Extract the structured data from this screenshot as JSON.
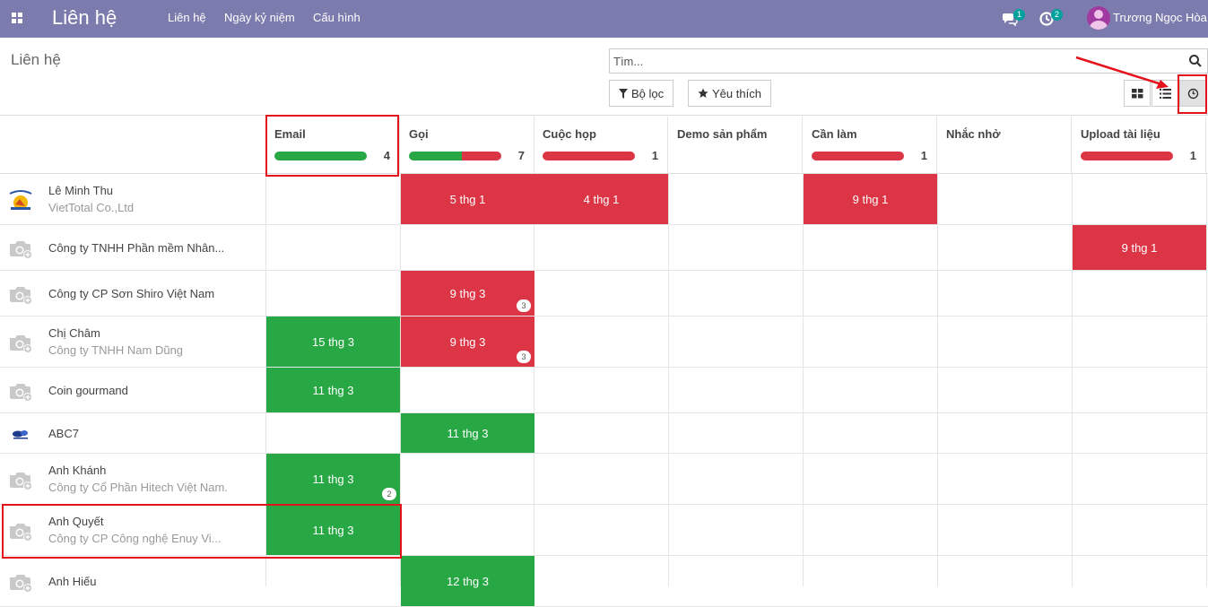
{
  "navbar": {
    "brand": "Liên hệ",
    "menu": [
      "Liên hệ",
      "Ngày kỷ niệm",
      "Cấu hình"
    ],
    "messages_count": "1",
    "activities_count": "2",
    "user_name": "Trương Ngọc Hòa",
    "color": "#7c7bad"
  },
  "control": {
    "title": "Liên hệ",
    "search_placeholder": "Tìm...",
    "filter_label": "Bộ lọc",
    "favorite_label": "Yêu thích",
    "views": [
      "kanban",
      "list",
      "activity"
    ],
    "active_view": "activity"
  },
  "columns": [
    {
      "title": "Email",
      "count": "4",
      "green": 1.0,
      "red": 0
    },
    {
      "title": "Gọi",
      "count": "7",
      "green": 0.57,
      "red": 0.43
    },
    {
      "title": "Cuộc họp",
      "count": "1",
      "green": 0,
      "red": 1.0
    },
    {
      "title": "Demo sản phẩm",
      "count": "",
      "green": 0,
      "red": 0
    },
    {
      "title": "Cần làm",
      "count": "1",
      "green": 0,
      "red": 1.0
    },
    {
      "title": "Nhắc nhở",
      "count": "",
      "green": 0,
      "red": 0
    },
    {
      "title": "Upload tài liệu",
      "count": "1",
      "green": 0,
      "red": 1.0
    }
  ],
  "rows": [
    {
      "name": "Lê Minh Thu",
      "company": "VietTotal Co.,Ltd",
      "avatar": "logo-viettotal",
      "cells": [
        {
          "col": 1,
          "text": "5 thg 1",
          "color": "red"
        },
        {
          "col": 2,
          "text": "4 thg 1",
          "color": "red"
        },
        {
          "col": 4,
          "text": "9 thg 1",
          "color": "red"
        }
      ]
    },
    {
      "name": "Công ty TNHH Phần mềm Nhân...",
      "company": "",
      "avatar": "camera",
      "cells": [
        {
          "col": 6,
          "text": "9 thg 1",
          "color": "red"
        }
      ]
    },
    {
      "name": "Công ty CP Sơn Shiro Việt Nam",
      "company": "",
      "avatar": "camera",
      "cells": [
        {
          "col": 1,
          "text": "9 thg 3",
          "color": "red",
          "badge": "3"
        }
      ]
    },
    {
      "name": "Chị Châm",
      "company": "Công ty TNHH Nam Dũng",
      "avatar": "camera",
      "cells": [
        {
          "col": 0,
          "text": "15 thg 3",
          "color": "green"
        },
        {
          "col": 1,
          "text": "9 thg 3",
          "color": "red",
          "badge": "3"
        }
      ]
    },
    {
      "name": "Coin gourmand",
      "company": "",
      "avatar": "camera",
      "cells": [
        {
          "col": 0,
          "text": "11 thg 3",
          "color": "green"
        }
      ]
    },
    {
      "name": "ABC7",
      "company": "",
      "avatar": "logo-abc7",
      "cells": [
        {
          "col": 1,
          "text": "11 thg 3",
          "color": "green"
        }
      ]
    },
    {
      "name": "Anh Khánh",
      "company": "Công ty Cổ Phần Hitech Việt Nam.",
      "avatar": "camera",
      "cells": [
        {
          "col": 0,
          "text": "11 thg 3",
          "color": "green",
          "badge": "2"
        }
      ]
    },
    {
      "name": "Anh Quyết",
      "company": "Công ty CP Công nghệ Enuy Vi...",
      "avatar": "camera",
      "cells": [
        {
          "col": 0,
          "text": "11 thg 3",
          "color": "green"
        }
      ]
    },
    {
      "name": "Anh Hiếu",
      "company": "",
      "avatar": "camera",
      "cells": [
        {
          "col": 1,
          "text": "12 thg 3",
          "color": "green"
        }
      ]
    }
  ],
  "colors": {
    "green": "#28a745",
    "red": "#dc3545",
    "annotation": "#e3121b"
  }
}
